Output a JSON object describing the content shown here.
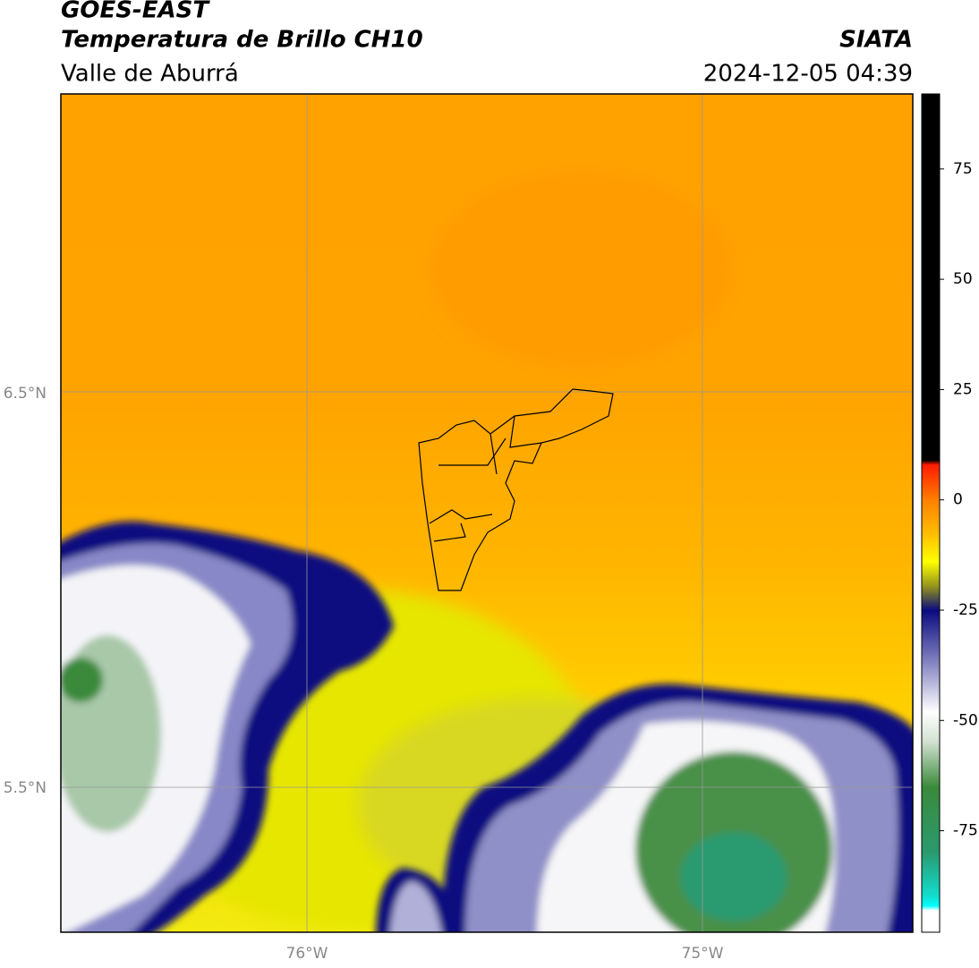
{
  "header": {
    "title": "GOES-EAST",
    "subtitle": "Temperatura de Brillo CH10",
    "source": "SIATA",
    "region": "Valle de Aburrá",
    "datetime": "2024-12-05 04:39"
  },
  "map": {
    "lat_labels": [
      "6.5°N",
      "5.5°N"
    ],
    "lon_labels": [
      "76°W",
      "75°W"
    ]
  },
  "colorbar": {
    "lim": [
      -98,
      92
    ],
    "ticks": [
      75,
      50,
      25,
      0,
      -25,
      -50,
      -75
    ],
    "stops": [
      {
        "value": 92,
        "color": "#000000"
      },
      {
        "value": 9,
        "color": "#000000"
      },
      {
        "value": 8,
        "color": "#ff1a00"
      },
      {
        "value": 0,
        "color": "#ff8000"
      },
      {
        "value": -8,
        "color": "#ffc000"
      },
      {
        "value": -14,
        "color": "#ffff00"
      },
      {
        "value": -20,
        "color": "#8a8a20"
      },
      {
        "value": -25,
        "color": "#0a0a80"
      },
      {
        "value": -38,
        "color": "#9090c8"
      },
      {
        "value": -48,
        "color": "#ffffff"
      },
      {
        "value": -55,
        "color": "#d0e0d0"
      },
      {
        "value": -65,
        "color": "#3a8a3a"
      },
      {
        "value": -80,
        "color": "#2a9a70"
      },
      {
        "value": -90,
        "color": "#10e0d0"
      },
      {
        "value": -92,
        "color": "#00ffff"
      },
      {
        "value": -93,
        "color": "#ffffff"
      },
      {
        "value": -98,
        "color": "#ffffff"
      }
    ]
  }
}
